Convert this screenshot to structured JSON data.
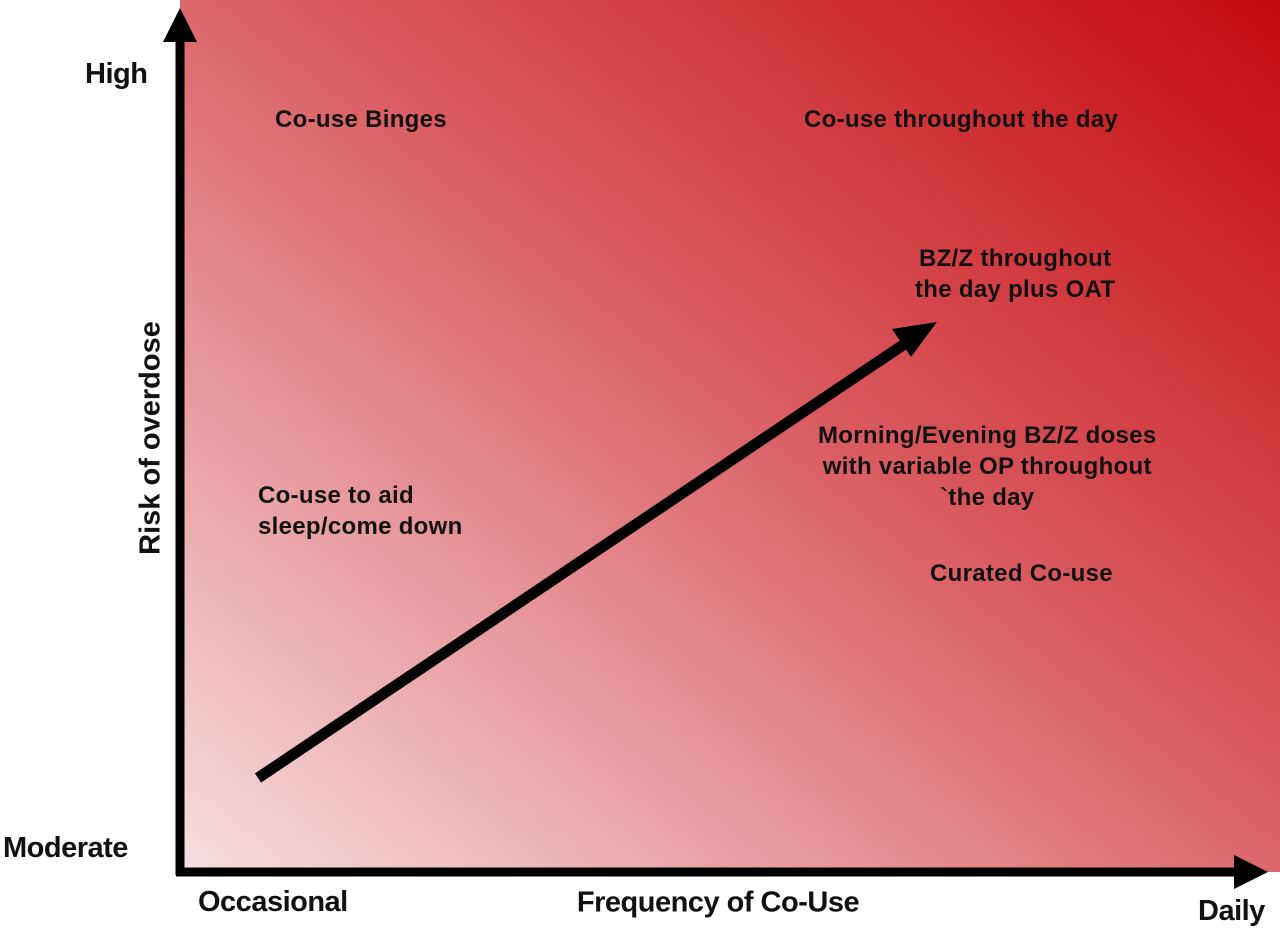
{
  "colors": {
    "gradient_light": "#f7dfe1",
    "gradient_mid": "#d95b60",
    "gradient_dark": "#c40a0e",
    "ink": "#111111"
  },
  "axes": {
    "y_title": "Risk of overdose",
    "y_high": "High",
    "y_low": "Moderate",
    "x_title": "Frequency of Co-Use",
    "x_low": "Occasional",
    "x_high": "Daily"
  },
  "zones": {
    "binges": "Co-use Binges",
    "throughout_day": "Co-use throughout the day",
    "bzz_oat": {
      "line1": "BZ/Z throughout",
      "line2": "the day plus OAT"
    },
    "morning_evening": {
      "line1": "Morning/Evening BZ/Z doses",
      "line2": "with variable OP throughout",
      "line3": "`the day"
    },
    "curated": "Curated Co-use",
    "sleep": {
      "line1": "Co-use to aid",
      "line2": "sleep/come down"
    }
  },
  "trend_arrow_icon": "diagonal-arrow-icon"
}
